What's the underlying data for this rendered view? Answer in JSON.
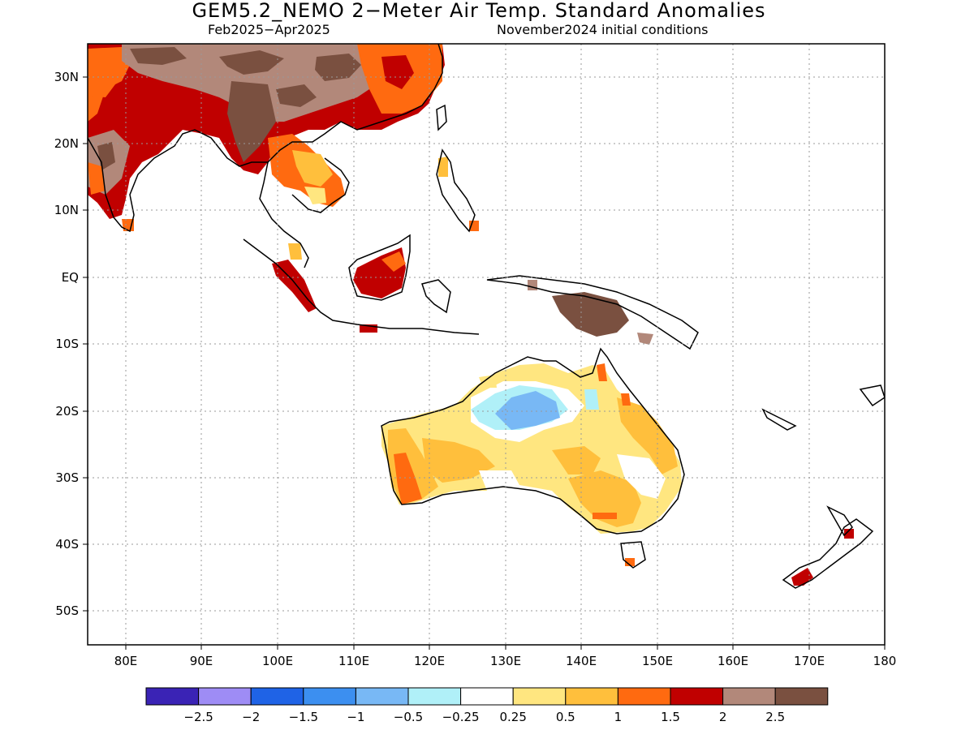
{
  "header": {
    "title": "GEM5.2_NEMO 2−Meter Air Temp. Standard Anomalies",
    "period": "Feb2025−Apr2025",
    "initial_conditions": "November2024 initial conditions"
  },
  "map": {
    "lon_ticks": [
      "80E",
      "90E",
      "100E",
      "110E",
      "120E",
      "130E",
      "140E",
      "150E",
      "160E",
      "170E",
      "180"
    ],
    "lat_ticks": [
      "30N",
      "20N",
      "10N",
      "EQ",
      "10S",
      "20S",
      "30S",
      "40S",
      "50S"
    ],
    "lon_range": [
      75,
      180
    ],
    "lat_range": [
      -55,
      35
    ],
    "grid": true
  },
  "colorbar": {
    "colors": [
      "#3a23b5",
      "#9e8cf5",
      "#1f63e6",
      "#3c8ff0",
      "#78b8f5",
      "#b0f0f8",
      "#ffffff",
      "#ffe680",
      "#ffbf3c",
      "#ff6a10",
      "#c00000",
      "#b2887a",
      "#7a5040"
    ],
    "labels": [
      "−2.5",
      "−2",
      "−1.5",
      "−1",
      "−0.5",
      "−0.25",
      "0.25",
      "0.5",
      "1",
      "1.5",
      "2",
      "2.5"
    ]
  }
}
